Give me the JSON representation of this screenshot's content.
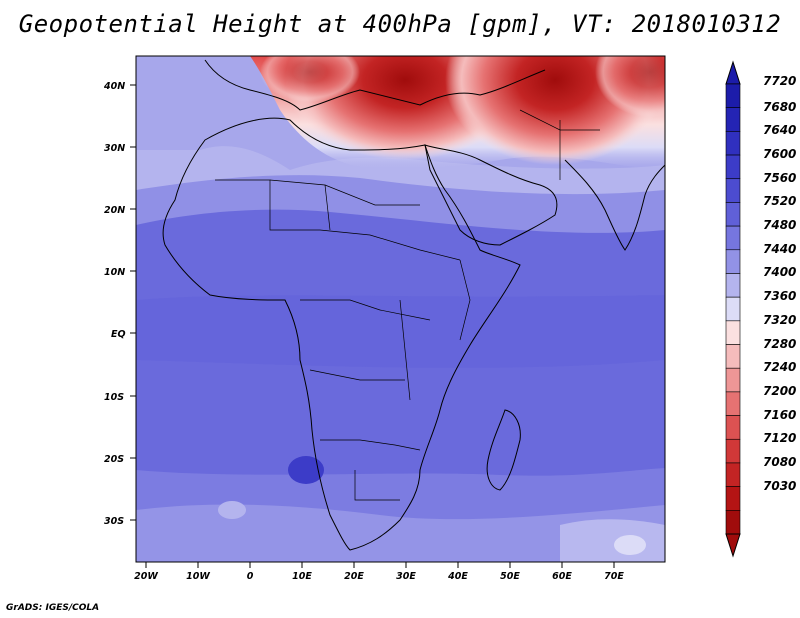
{
  "title": "Geopotential Height at 400hPa [gpm], VT: 2018010312",
  "credit": "GrADS: IGES/COLA",
  "map": {
    "region": "Africa and surroundings",
    "lat_labels": [
      "40N",
      "30N",
      "20N",
      "10N",
      "EQ",
      "10S",
      "20S",
      "30S"
    ],
    "lon_labels": [
      "20W",
      "10W",
      "0",
      "10E",
      "20E",
      "30E",
      "40E",
      "50E",
      "60E",
      "70E"
    ]
  },
  "colorbar": {
    "levels": [
      "7720",
      "7680",
      "7640",
      "7600",
      "7560",
      "7520",
      "7480",
      "7440",
      "7400",
      "7360",
      "7320",
      "7280",
      "7240",
      "7200",
      "7160",
      "7120",
      "7080",
      "7030"
    ],
    "colors": [
      "#1c1caa",
      "#2424b4",
      "#3030bf",
      "#3c3cc8",
      "#4c4cd0",
      "#6060d8",
      "#7676df",
      "#9292e6",
      "#b4b4ee",
      "#dcdcf7",
      "#fbe0e0",
      "#f5bcbc",
      "#ee9696",
      "#e67272",
      "#dc5252",
      "#d13838",
      "#c32424",
      "#b41414",
      "#a00c0c"
    ]
  }
}
